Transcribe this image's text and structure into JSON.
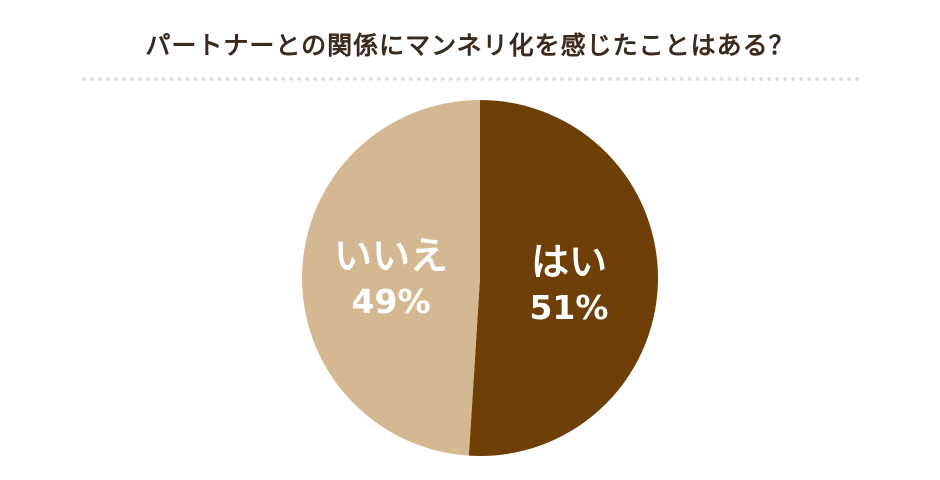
{
  "title": "パートナーとの関係にマンネリ化を感じたことはある？",
  "chart_data": {
    "type": "pie",
    "title": "パートナーとの関係にマンネリ化を感じたことはある？",
    "slices": [
      {
        "label": "はい",
        "value": 51,
        "value_label": "51%",
        "color": "#6e3f06"
      },
      {
        "label": "いいえ",
        "value": 49,
        "value_label": "49%",
        "color": "#d4b891"
      }
    ],
    "start_angle": "12 o'clock",
    "direction": "clockwise",
    "legend": "none",
    "labels": "inside slices"
  }
}
